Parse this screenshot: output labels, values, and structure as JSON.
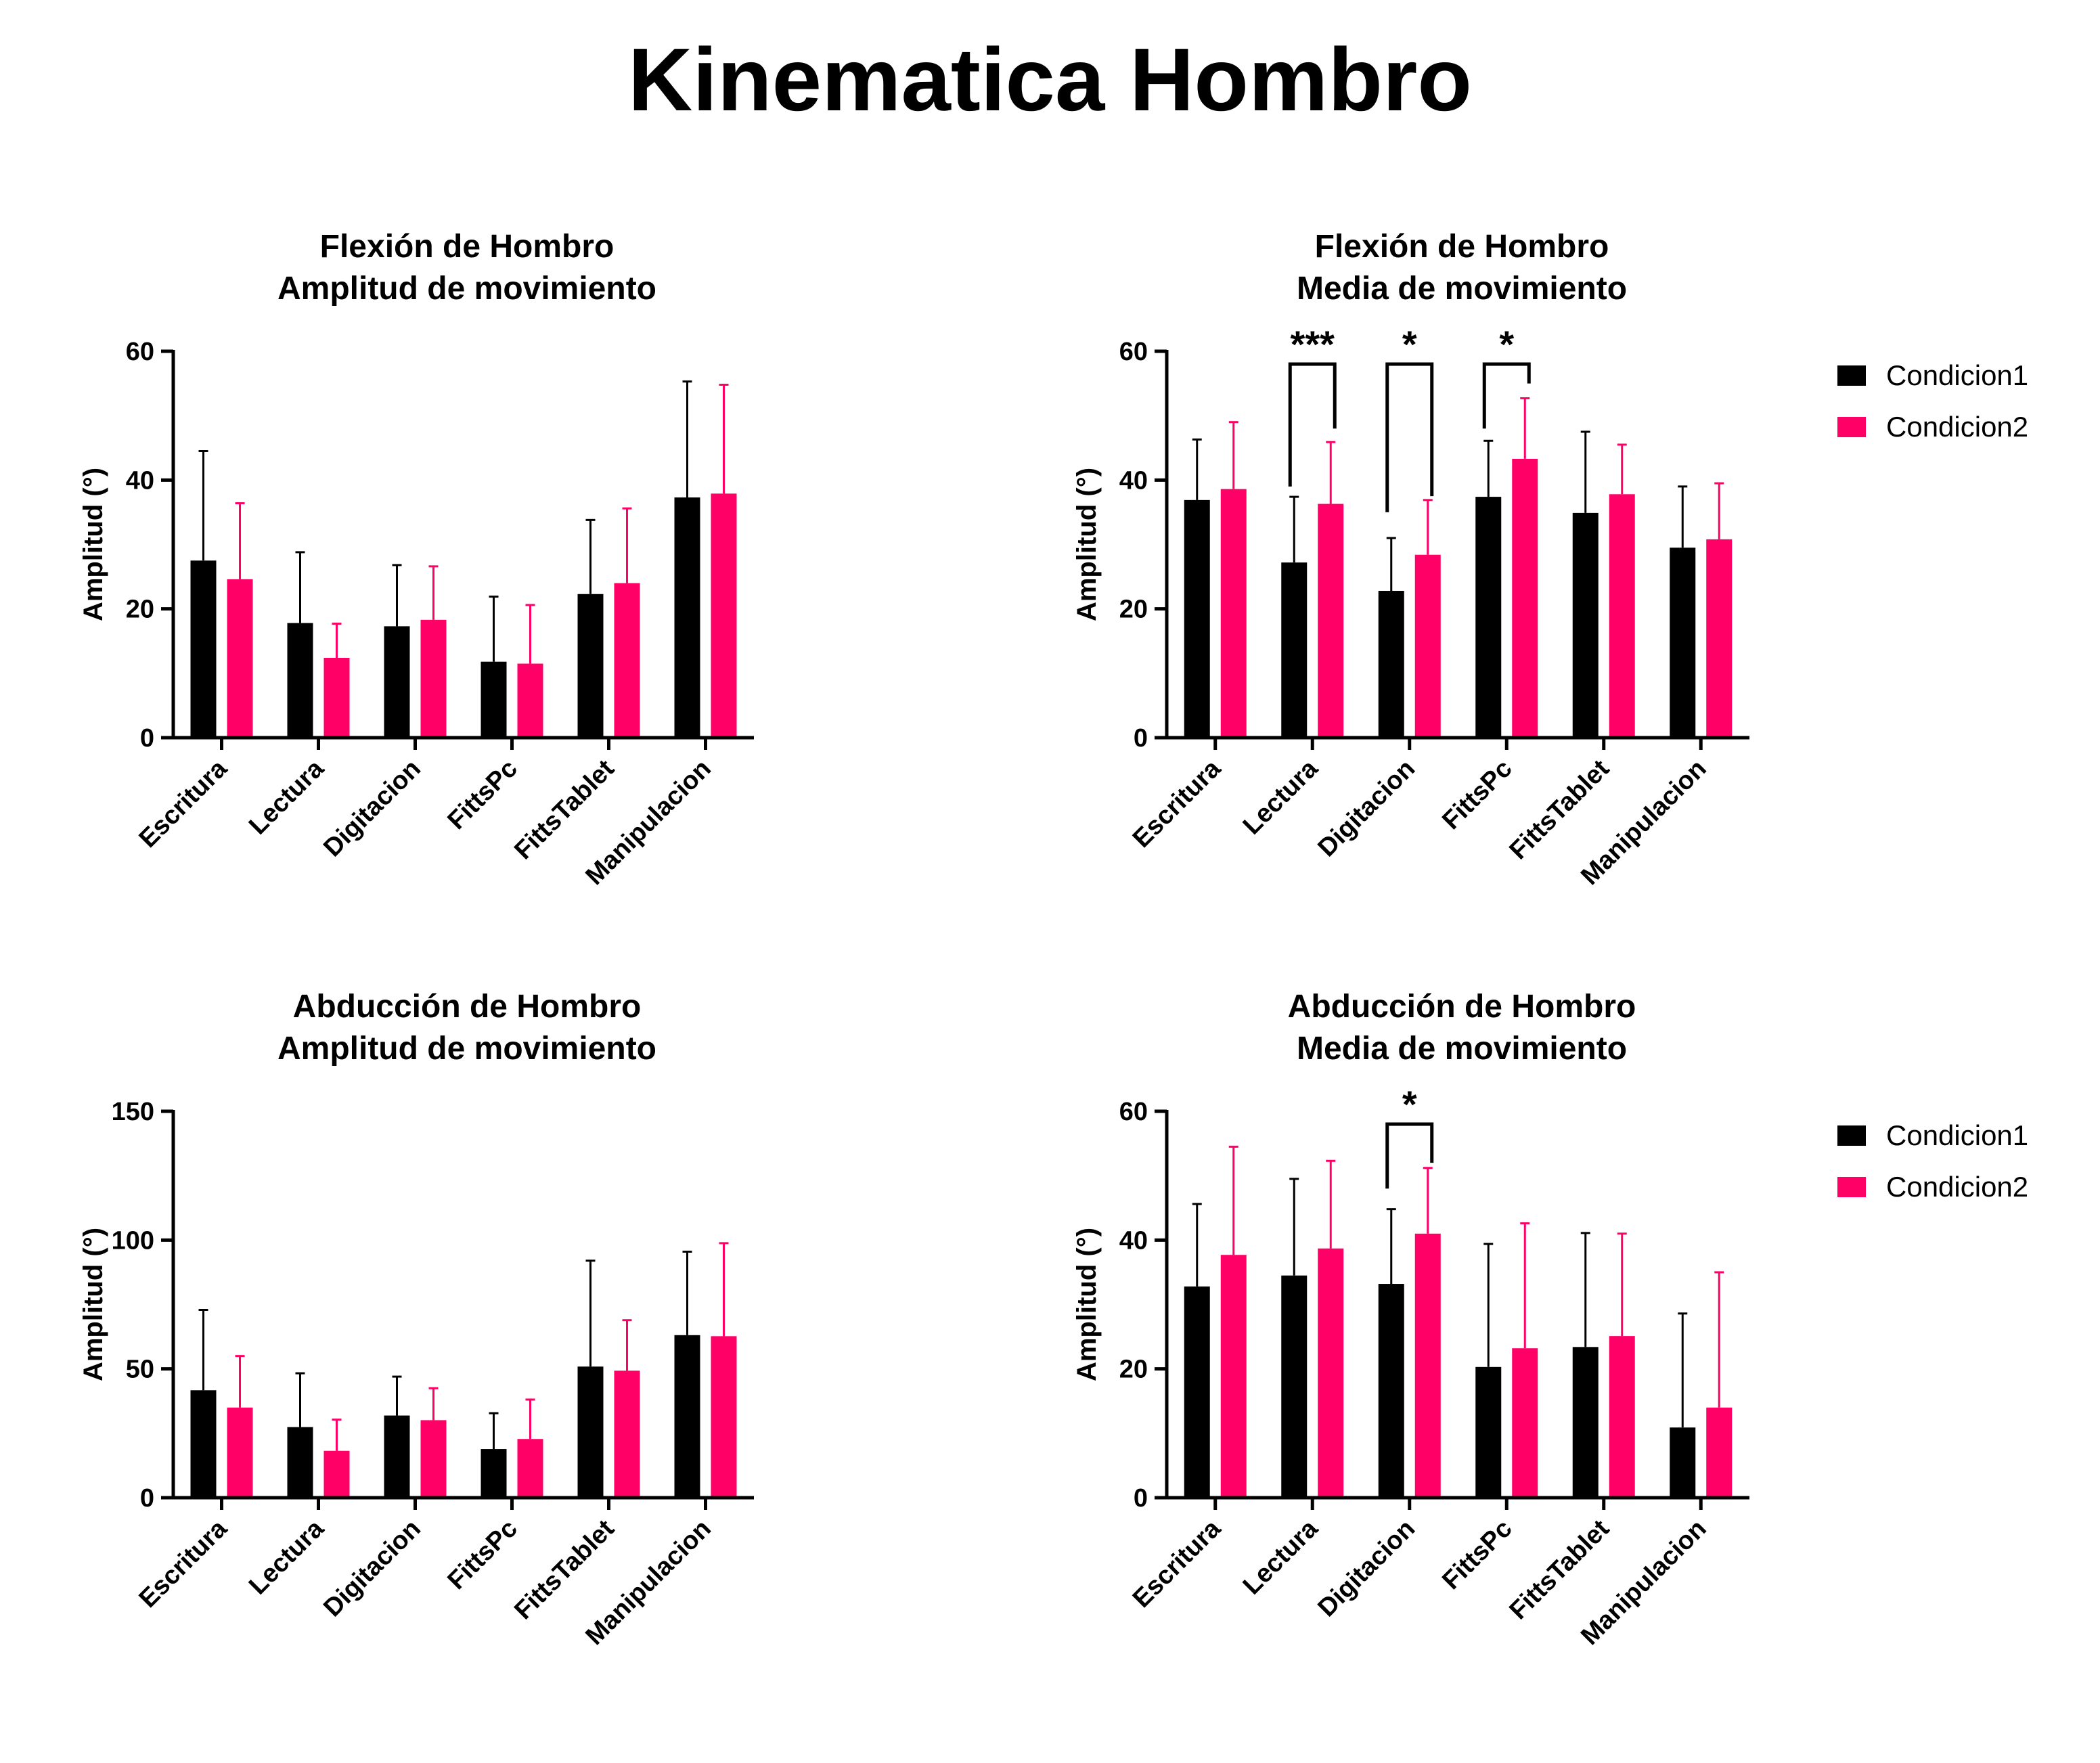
{
  "title": "Kinematica Hombro",
  "colors": {
    "c1": "#000000",
    "c2": "#ff0066"
  },
  "legend": [
    "Condicion1",
    "Condicion2"
  ],
  "chart_data": [
    {
      "type": "bar",
      "title": [
        "Flexión de Hombro",
        "Amplitud de movimiento"
      ],
      "ylabel": "Amplitud (°)",
      "xlabel": "",
      "ylim": [
        0,
        60
      ],
      "yticks": [
        0,
        20,
        40,
        60
      ],
      "categories": [
        "Escritura",
        "Lectura",
        "Digitacion",
        "FittsPc",
        "FittsTablet",
        "Manipulacion"
      ],
      "series": [
        {
          "name": "Condicion1",
          "values": [
            27.5,
            17.8,
            17.3,
            11.8,
            22.3,
            37.3
          ],
          "errors": [
            17.0,
            11.0,
            9.5,
            10.1,
            11.5,
            18.0
          ]
        },
        {
          "name": "Condicion2",
          "values": [
            24.6,
            12.4,
            18.3,
            11.5,
            24.0,
            37.9
          ],
          "errors": [
            11.8,
            5.3,
            8.3,
            9.1,
            11.6,
            16.9
          ]
        }
      ],
      "legend": false,
      "significance": []
    },
    {
      "type": "bar",
      "title": [
        "Flexión de Hombro",
        "Media de movimiento"
      ],
      "ylabel": "Amplitud (°)",
      "xlabel": "",
      "ylim": [
        0,
        60
      ],
      "yticks": [
        0,
        20,
        40,
        60
      ],
      "categories": [
        "Escritura",
        "Lectura",
        "Digitacion",
        "FittsPc",
        "FittsTablet",
        "Manipulacion"
      ],
      "series": [
        {
          "name": "Condicion1",
          "values": [
            36.9,
            27.2,
            22.8,
            37.4,
            34.9,
            29.5
          ],
          "errors": [
            9.4,
            10.2,
            8.2,
            8.7,
            12.6,
            9.5
          ]
        },
        {
          "name": "Condicion2",
          "values": [
            38.6,
            36.3,
            28.4,
            43.3,
            37.8,
            30.8
          ],
          "errors": [
            10.4,
            9.6,
            8.5,
            9.4,
            7.7,
            8.7
          ]
        }
      ],
      "legend": true,
      "significance": [
        {
          "category": 1,
          "label": "***",
          "left_y": 39,
          "right_y": 48,
          "top_y": 58
        },
        {
          "category": 2,
          "label": "*",
          "left_y": 35,
          "right_y": 37.5,
          "top_y": 58
        },
        {
          "category": 3,
          "label": "*",
          "left_y": 48,
          "right_y": 55,
          "top_y": 58
        }
      ]
    },
    {
      "type": "bar",
      "title": [
        "Abducción de Hombro",
        "Amplitud de movimiento"
      ],
      "ylabel": "Amplitud (°)",
      "xlabel": "",
      "ylim": [
        0,
        150
      ],
      "yticks": [
        0,
        50,
        100,
        150
      ],
      "categories": [
        "Escritura",
        "Lectura",
        "Digitacion",
        "FittsPc",
        "FittsTablet",
        "Manipulacion"
      ],
      "series": [
        {
          "name": "Condicion1",
          "values": [
            41.7,
            27.4,
            31.9,
            18.9,
            50.9,
            63.1
          ],
          "errors": [
            31.2,
            20.9,
            15.1,
            13.9,
            41.1,
            32.4
          ]
        },
        {
          "name": "Condicion2",
          "values": [
            35.0,
            18.2,
            30.1,
            22.8,
            49.3,
            62.7
          ],
          "errors": [
            20.0,
            12.1,
            12.4,
            15.3,
            19.6,
            36.1
          ]
        }
      ],
      "legend": false,
      "significance": []
    },
    {
      "type": "bar",
      "title": [
        "Abducción de Hombro",
        "Media de movimiento"
      ],
      "ylabel": "Amplitud (°)",
      "xlabel": "",
      "ylim": [
        0,
        60
      ],
      "yticks": [
        0,
        20,
        40,
        60
      ],
      "categories": [
        "Escritura",
        "Lectura",
        "Digitacion",
        "FittsPc",
        "FittsTablet",
        "Manipulacion"
      ],
      "series": [
        {
          "name": "Condicion1",
          "values": [
            32.8,
            34.5,
            33.2,
            20.3,
            23.4,
            10.9
          ],
          "errors": [
            12.8,
            15.0,
            11.6,
            19.1,
            17.7,
            17.7
          ]
        },
        {
          "name": "Condicion2",
          "values": [
            37.7,
            38.7,
            41.0,
            23.2,
            25.1,
            14.0
          ],
          "errors": [
            16.8,
            13.6,
            10.2,
            19.4,
            15.9,
            21.0
          ]
        }
      ],
      "legend": true,
      "significance": [
        {
          "category": 2,
          "label": "*",
          "left_y": 48,
          "right_y": 52,
          "top_y": 58
        }
      ]
    }
  ]
}
